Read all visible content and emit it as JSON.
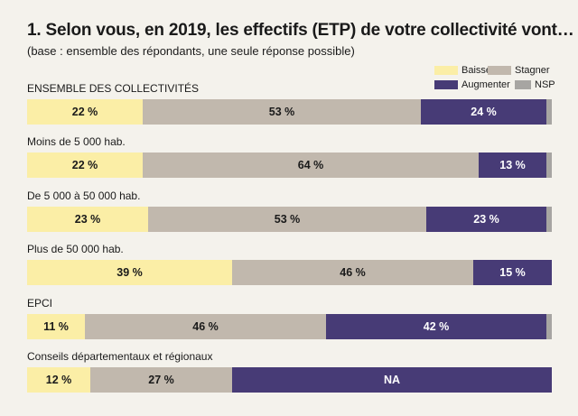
{
  "title": "1. Selon vous, en 2019, les effectifs (ETP) de votre collectivité vont…",
  "subtitle": "(base : ensemble des répondants, une seule réponse possible)",
  "colors": {
    "Baisser": "#fbeea6",
    "Stagner": "#c1b8ad",
    "Augmenter": "#473b76",
    "NSP": "#a7a5a2",
    "NA": "#473b76"
  },
  "legend": {
    "baisser": "Baisser",
    "stagner": "Stagner",
    "augmenter": "Augmenter",
    "nsp": "NSP"
  },
  "chart_data": {
    "type": "bar",
    "orientation": "horizontal",
    "stacked": true,
    "normalized": true,
    "title": "1. Selon vous, en 2019, les effectifs (ETP) de votre collectivité vont…",
    "subtitle": "(base : ensemble des répondants, une seule réponse possible)",
    "unit": "%",
    "categories": [
      "ENSEMBLE DES COLLECTIVITÉS",
      "Moins de 5 000 hab.",
      "De 5 000 à 50 000 hab.",
      "Plus de 50 000 hab.",
      "EPCI",
      "Conseils départementaux et régionaux"
    ],
    "series_names": [
      "Baisser",
      "Stagner",
      "Augmenter",
      "NSP"
    ],
    "rows": [
      {
        "label": "ENSEMBLE DES COLLECTIVITÉS",
        "segments": [
          {
            "series": "Baisser",
            "value": 22,
            "label": "22 %"
          },
          {
            "series": "Stagner",
            "value": 53,
            "label": "53 %"
          },
          {
            "series": "Augmenter",
            "value": 24,
            "label": "24 %"
          },
          {
            "series": "NSP",
            "value": 1,
            "label": ""
          }
        ]
      },
      {
        "label": "Moins de 5 000 hab.",
        "segments": [
          {
            "series": "Baisser",
            "value": 22,
            "label": "22 %"
          },
          {
            "series": "Stagner",
            "value": 64,
            "label": "64 %"
          },
          {
            "series": "Augmenter",
            "value": 13,
            "label": "13 %"
          },
          {
            "series": "NSP",
            "value": 1,
            "label": ""
          }
        ]
      },
      {
        "label": "De 5 000 à 50 000 hab.",
        "segments": [
          {
            "series": "Baisser",
            "value": 23,
            "label": "23 %"
          },
          {
            "series": "Stagner",
            "value": 53,
            "label": "53 %"
          },
          {
            "series": "Augmenter",
            "value": 23,
            "label": "23 %"
          },
          {
            "series": "NSP",
            "value": 1,
            "label": ""
          }
        ]
      },
      {
        "label": "Plus de 50 000 hab.",
        "segments": [
          {
            "series": "Baisser",
            "value": 39,
            "label": "39 %"
          },
          {
            "series": "Stagner",
            "value": 46,
            "label": "46 %"
          },
          {
            "series": "Augmenter",
            "value": 15,
            "label": "15 %"
          }
        ]
      },
      {
        "label": "EPCI",
        "segments": [
          {
            "series": "Baisser",
            "value": 11,
            "label": "11 %"
          },
          {
            "series": "Stagner",
            "value": 46,
            "label": "46 %"
          },
          {
            "series": "Augmenter",
            "value": 42,
            "label": "42 %"
          },
          {
            "series": "NSP",
            "value": 1,
            "label": ""
          }
        ]
      },
      {
        "label": "Conseils départementaux et régionaux",
        "segments": [
          {
            "series": "Baisser",
            "value": 12,
            "label": "12 %"
          },
          {
            "series": "Stagner",
            "value": 27,
            "label": "27 %"
          },
          {
            "series": "NA",
            "value": 61,
            "label": "NA"
          }
        ]
      }
    ]
  }
}
